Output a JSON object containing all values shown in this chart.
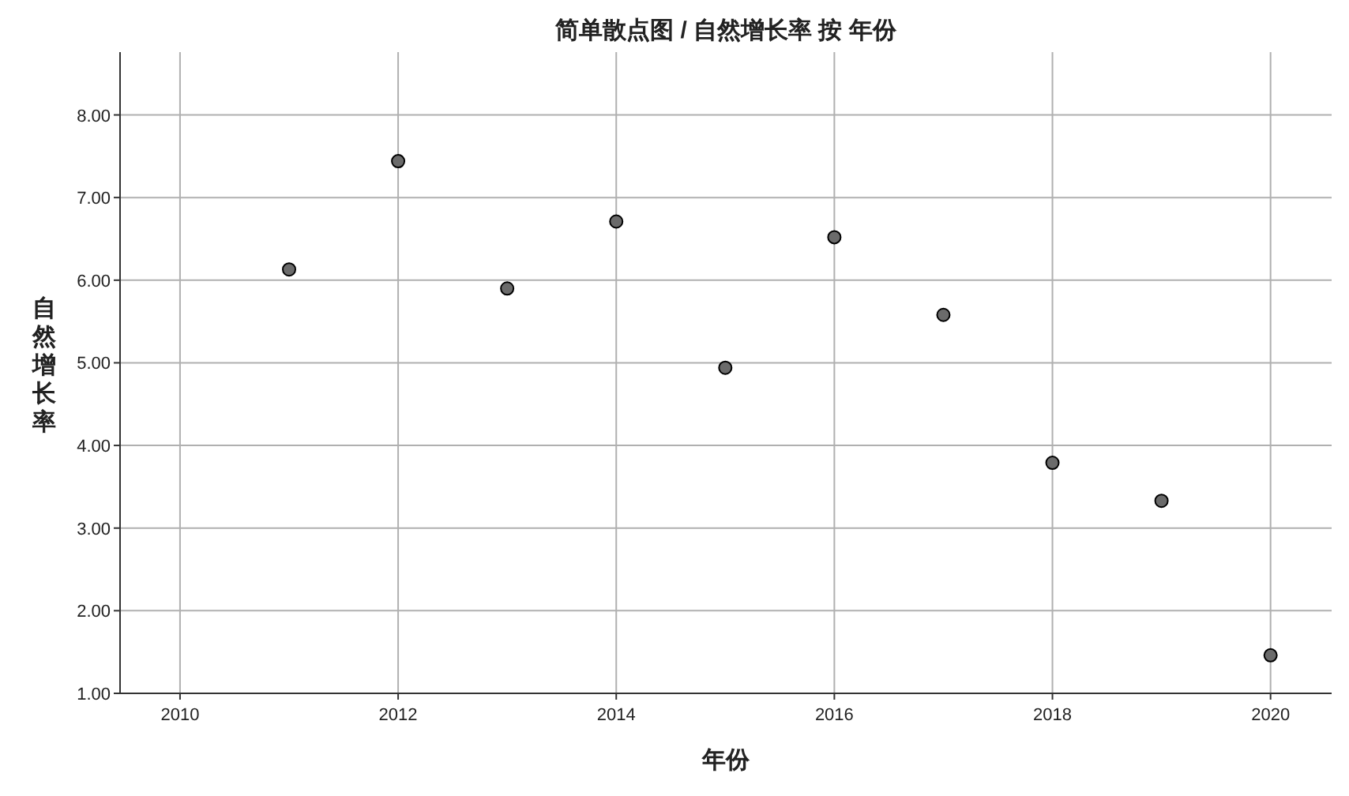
{
  "chart_data": {
    "type": "scatter",
    "title": "简单散点图 / 自然增长率 按 年份",
    "xlabel": "年份",
    "ylabel": "自然增长率",
    "x": [
      2011,
      2012,
      2013,
      2014,
      2015,
      2016,
      2017,
      2018,
      2019,
      2020
    ],
    "values": [
      6.13,
      7.44,
      5.9,
      6.71,
      4.94,
      6.52,
      5.58,
      3.79,
      3.33,
      1.46
    ],
    "color": "#6b6b6b",
    "marker": "circle",
    "grid": true,
    "xlim": [
      2009.45,
      2020.56
    ],
    "xticks": [
      2010,
      2012,
      2014,
      2016,
      2018,
      2020
    ],
    "ylim": [
      1,
      8.76
    ],
    "yticks": [
      {
        "value": 1,
        "label": "1.00"
      },
      {
        "value": 2,
        "label": "2.00"
      },
      {
        "value": 3,
        "label": "3.00"
      },
      {
        "value": 4,
        "label": "4.00"
      },
      {
        "value": 5,
        "label": "5.00"
      },
      {
        "value": 6,
        "label": "6.00"
      },
      {
        "value": 7,
        "label": "7.00"
      },
      {
        "value": 8,
        "label": "8.00"
      }
    ]
  }
}
